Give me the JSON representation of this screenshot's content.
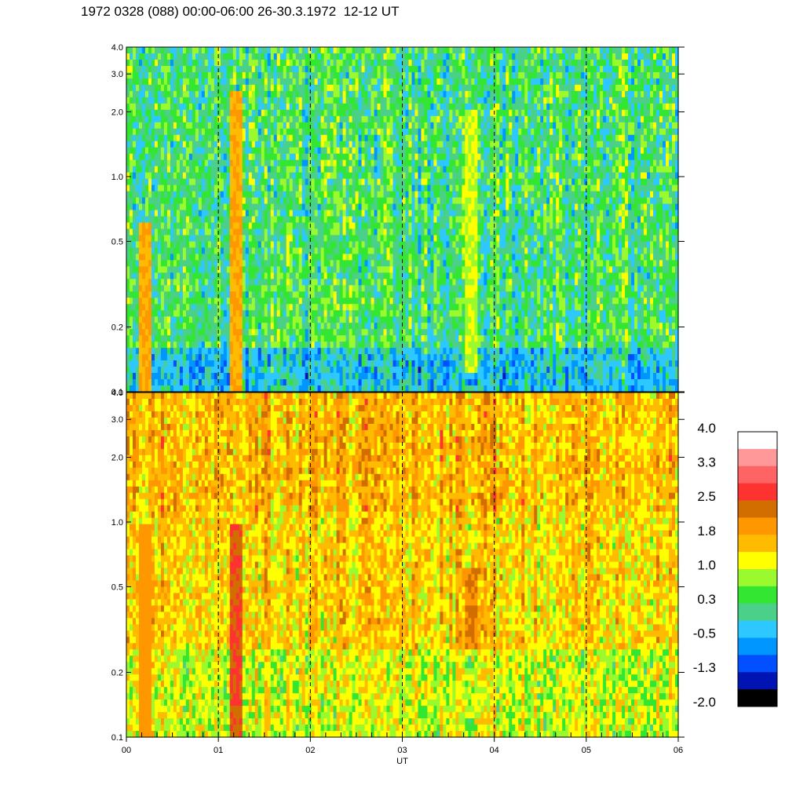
{
  "title": "1972 0328 (088) 00:00-06:00 26-30.3.1972  12-12 UT",
  "chart_data": [
    {
      "type": "heatmap",
      "panel": "upper",
      "yscale": "log",
      "ylim": [
        0.1,
        4.0
      ],
      "yticks": [
        "0.1",
        "0.2",
        "0.5",
        "1.0",
        "2.0",
        "3.0",
        "4.0"
      ],
      "yticks_values": [
        0.1,
        0.2,
        0.5,
        1.0,
        2.0,
        3.0,
        4.0
      ],
      "xlim": [
        0,
        6
      ],
      "dominant_level": 0.3,
      "features": [
        {
          "x": 1.2,
          "ymin": 0.1,
          "ymax": 2.5,
          "level": 1.8
        },
        {
          "x": 3.75,
          "ymin": 0.12,
          "ymax": 2.0,
          "level": 1.0
        },
        {
          "x": 0.2,
          "ymin": 0.1,
          "ymax": 0.6,
          "level": 1.8
        }
      ]
    },
    {
      "type": "heatmap",
      "panel": "lower",
      "yscale": "log",
      "ylim": [
        0.1,
        4.0
      ],
      "yticks": [
        "0.1",
        "0.2",
        "0.5",
        "1.0",
        "2.0",
        "3.0",
        "4.0"
      ],
      "yticks_values": [
        0.1,
        0.2,
        0.5,
        1.0,
        2.0,
        3.0,
        4.0
      ],
      "xlim": [
        0,
        6
      ],
      "xlabel": "UT",
      "xticks": [
        "00",
        "01",
        "02",
        "03",
        "04",
        "05",
        "06"
      ],
      "xticks_values": [
        0,
        1,
        2,
        3,
        4,
        5,
        6
      ],
      "dominant_level": 1.5,
      "features": [
        {
          "x": 1.2,
          "ymin": 0.1,
          "ymax": 1.0,
          "level": 2.5
        },
        {
          "x": 3.75,
          "ymin": 0.25,
          "ymax": 0.6,
          "level": 2.2
        },
        {
          "x": 0.2,
          "ymin": 0.1,
          "ymax": 1.0,
          "level": 2.0
        }
      ]
    }
  ],
  "colorbar": {
    "labels": [
      "4.0",
      "3.3",
      "2.5",
      "1.8",
      "1.0",
      "0.3",
      "-0.5",
      "-1.3",
      "-2.0"
    ],
    "colors": [
      "#ffffff",
      "#ff9898",
      "#ff6464",
      "#ff3232",
      "#d26e00",
      "#ff9800",
      "#ffbb00",
      "#ffff00",
      "#9bfa2d",
      "#32e632",
      "#4bd08a",
      "#2dc8ff",
      "#0096ff",
      "#0050ff",
      "#0014b4",
      "#000000"
    ]
  },
  "dashed_lines_x": [
    1,
    2,
    3,
    4,
    5
  ]
}
